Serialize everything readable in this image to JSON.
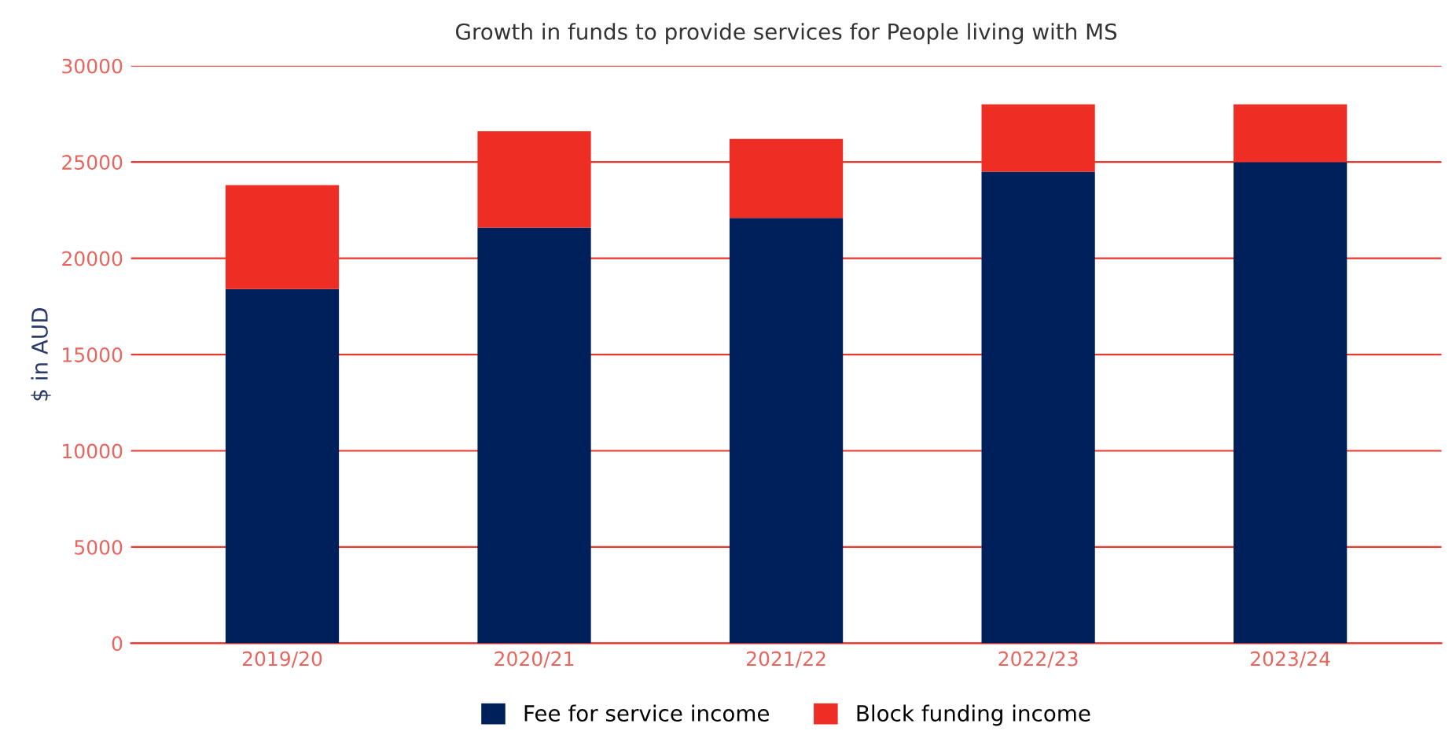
{
  "chart_data": {
    "type": "bar",
    "title": "Growth in funds to provide services for People living with MS",
    "ylabel": "$ in AUD",
    "categories": [
      "2019/20",
      "2020/21",
      "2021/22",
      "2022/23",
      "2023/24"
    ],
    "stacked": true,
    "series": [
      {
        "name": "Fee for service income",
        "color": "#00205b",
        "values": [
          18400,
          21600,
          22100,
          24500,
          25000
        ]
      },
      {
        "name": "Block funding income",
        "color": "#ee2e24",
        "values": [
          5400,
          5000,
          4100,
          3500,
          3000
        ]
      }
    ],
    "ylim": [
      0,
      30000
    ],
    "yticks": [
      0,
      5000,
      10000,
      15000,
      20000,
      25000,
      30000
    ],
    "grid": "y",
    "legend": "bottom"
  }
}
